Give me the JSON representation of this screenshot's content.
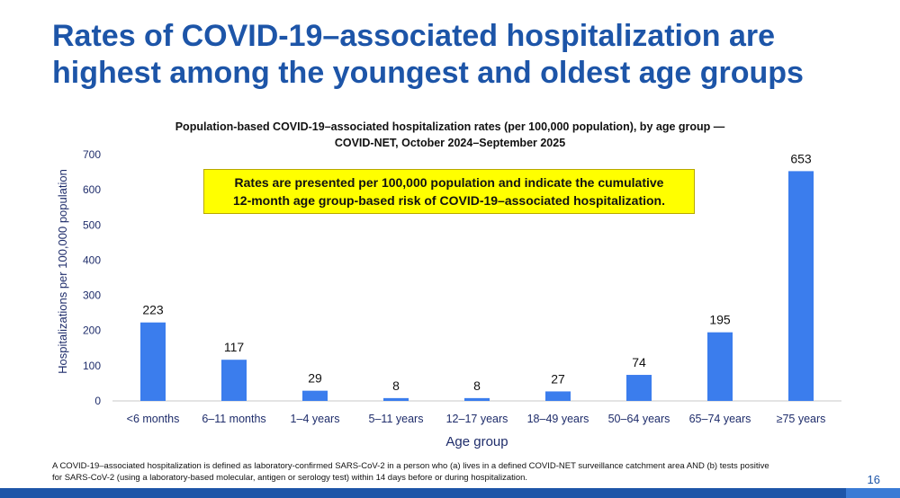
{
  "slide": {
    "title": "Rates of COVID-19–associated hospitalization are highest among the youngest and oldest age groups",
    "subtitle_line1": "Population-based COVID-19–associated hospitalization rates (per 100,000 population), by age group —",
    "subtitle_line2": "COVID-NET, October 2024–September 2025",
    "callout_line1": "Rates are presented per 100,000 population and indicate the cumulative",
    "callout_line2": "12-month age group-based risk of COVID-19–associated hospitalization.",
    "footnote_line1": "A COVID-19–associated hospitalization is defined as laboratory-confirmed SARS-CoV-2 in a person who (a) lives in a defined COVID-NET surveillance catchment area AND (b) tests positive",
    "footnote_line2": "for SARS-CoV-2 (using a laboratory-based molecular, antigen or serology test) within 14 days before or during hospitalization.",
    "page_number": "16"
  },
  "colors": {
    "title": "#1d55a8",
    "bar": "#3b7ded",
    "callout_bg": "#ffff00",
    "axis_text": "#1f2d6b"
  },
  "chart_data": {
    "type": "bar",
    "title": "Population-based COVID-19–associated hospitalization rates (per 100,000 population), by age group — COVID-NET, October 2024–September 2025",
    "xlabel": "Age group",
    "ylabel": "Hospitalizations per 100,000 population",
    "categories": [
      "<6 months",
      "6–11 months",
      "1–4 years",
      "5–11 years",
      "12–17 years",
      "18–49 years",
      "50–64 years",
      "65–74 years",
      "≥75 years"
    ],
    "values": [
      223,
      117,
      29,
      8,
      8,
      27,
      74,
      195,
      653
    ],
    "value_labels": [
      "223",
      "117",
      "29",
      "8",
      "8",
      "27",
      "74",
      "195",
      "653"
    ],
    "ylim": [
      0,
      700
    ],
    "yticks": [
      0,
      100,
      200,
      300,
      400,
      500,
      600,
      700
    ],
    "ytick_labels": [
      "0",
      "100",
      "200",
      "300",
      "400",
      "500",
      "600",
      "700"
    ],
    "grid": false,
    "legend": "none"
  }
}
